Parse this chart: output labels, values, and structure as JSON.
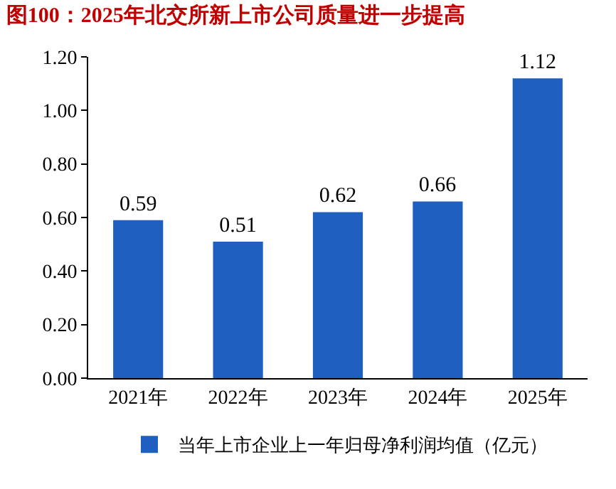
{
  "chart_data": {
    "type": "bar",
    "title": "图100：2025年北交所新上市公司质量进一步提高",
    "categories": [
      "2021年",
      "2022年",
      "2023年",
      "2024年",
      "2025年"
    ],
    "series": [
      {
        "name": "当年上市企业上一年归母净利润均值（亿元）",
        "color": "#1f5fbf",
        "values": [
          0.59,
          0.51,
          0.62,
          0.66,
          1.12
        ]
      }
    ],
    "ylim": [
      0,
      1.2
    ],
    "yticks": [
      {
        "value": 0,
        "label": "0.00"
      },
      {
        "value": 0.2,
        "label": "0.20"
      },
      {
        "value": 0.4,
        "label": "0.40"
      },
      {
        "value": 0.6,
        "label": "0.60"
      },
      {
        "value": 0.8,
        "label": "0.80"
      },
      {
        "value": 1,
        "label": "1.00"
      },
      {
        "value": 1.2,
        "label": "1.20"
      }
    ],
    "data_labels": true,
    "legend": "bottom"
  }
}
